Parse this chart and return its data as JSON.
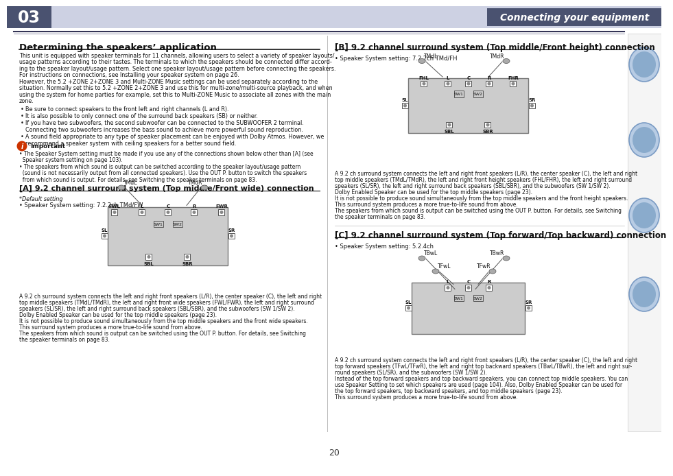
{
  "page_num": "20",
  "chapter_num": "03",
  "chapter_title": "Connecting your equipment",
  "section_title": "Determining the speakers’ application",
  "bg_color": "#ffffff",
  "header_box_color": "#4a5270",
  "header_bar_color": "#cdd1e3",
  "divider_color": "#333355",
  "section_a_title": "[A] 9.2 channel surround system (Top middle/Front wide) connection",
  "section_b_title": "[B] 9.2 channel surround system (Top middle/Front height) connection",
  "section_c_title": "[C] 9.2 channel surround system (Top forward/Top backward) connection",
  "text_color": "#111111",
  "link_color": "#3366aa",
  "diagram_fill": "#dddddd",
  "diagram_line": "#555555",
  "right_panel_color": "#f5f5f5",
  "right_panel_border": "#cccccc",
  "icon_colors": [
    "#c8d8f0",
    "#c8d8f0",
    "#c8d8f0",
    "#c8d8f0"
  ]
}
